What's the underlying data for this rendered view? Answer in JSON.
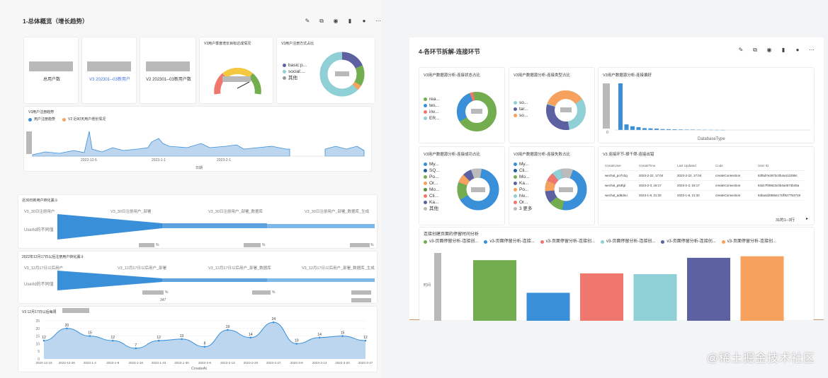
{
  "left": {
    "title": "1-总体概览（增长趋势）",
    "kpis": [
      {
        "label": "总用户数"
      },
      {
        "label": "V3 202301--03新用户"
      },
      {
        "label": "V2 202301--03新用户数"
      }
    ],
    "gauge": {
      "title": "V3用户季度增长目标达成情况"
    },
    "login_pie": {
      "title": "V3用户注册方式占比",
      "legend": [
        "basic:p...",
        "social:...",
        "其他"
      ]
    },
    "trend": {
      "title": "V3用户注册趋势",
      "legend": [
        "用户注册趋势",
        "V2 近90天用户增长情况"
      ],
      "xticks": [
        "2022-12-5",
        "2023-1-1",
        "2023-2-1"
      ],
      "xlabel": "日期"
    },
    "funnel1": {
      "title": "近30日新用户转化漏斗",
      "steps": [
        "V3_30日注册用户",
        "V3_30日注册用户_部署",
        "V3_30日注册用户_部署_数据库",
        "V3_30日注册用户_部署_数据库_生成"
      ],
      "side": "UserId的不同值",
      "pct": "%"
    },
    "funnel2": {
      "title": "2022年12月17日以后注册用户转化漏斗",
      "steps": [
        "V3_12月17日以后用户",
        "V3_12月17日以后用户_部署",
        "V3_12月17日以后用户_部署_数据库",
        "V3_12月17日以后用户_部署_数据库_生成"
      ],
      "side": "UserId的不同值",
      "pct": "%",
      "extra": "347"
    },
    "area": {
      "title": "V3 12月17日以后每周",
      "ylabel": "",
      "xlabel": "CreateAt",
      "yticks": [
        "25",
        "20",
        "15",
        "10",
        "5",
        "0"
      ],
      "xticks": [
        "2022-12-19",
        "2022-12-26",
        "2023-1-2",
        "2023-1-9",
        "2023-1-16",
        "2023-1-23",
        "2023-1-30",
        "2023-2-6",
        "2023-2-13",
        "2023-2-20",
        "2023-2-27",
        "2023-3-6",
        "2023-3-13",
        "2023-3-20",
        "2023-3-27"
      ],
      "values": [
        12,
        20,
        15,
        12,
        7,
        12,
        13,
        8,
        19,
        14,
        24,
        10,
        14,
        15,
        12
      ]
    }
  },
  "right": {
    "title": "4-各环节拆解-连接环节",
    "status_pie": {
      "title": "V3用户数据源分析-连接状态占比",
      "legend": [
        "rea...",
        "tes...",
        "inv...",
        "ER..."
      ]
    },
    "type_pie": {
      "title": "V3用户数据源分析-连接类型占比",
      "legend": [
        "so...",
        "tar...",
        "so..."
      ]
    },
    "pref": {
      "title": "V3用户数据源分析-连接偏好",
      "xlabel": "DatabaseType",
      "yzero": "0"
    },
    "success_pie": {
      "title": "V3用户数据源分析-连接成功占比",
      "legend": [
        "My...",
        "SQ...",
        "Po...",
        "Or...",
        "Mo...",
        "Cli...",
        "Ka...",
        "其他"
      ]
    },
    "fail_pie": {
      "title": "V3用户数据源分析-连接失败占比",
      "legend": [
        "My...",
        "Cli...",
        "Mo...",
        "Ka...",
        "Po...",
        "hiv...",
        "Or...",
        "3 更多"
      ]
    },
    "table": {
      "title": "V3 连接环节-择千筛-连接出错",
      "headers": [
        "CreateUser",
        "CreateTime",
        "Last Updated",
        "Code",
        "User ID"
      ],
      "rows": [
        [
          "wechat_po7n2g",
          "2023-2-22, 17:04",
          "2023-2-22, 17:04",
          "createConnection",
          "63f5d7e2872c0b4a412259c"
        ],
        [
          "wechat_p53fgl",
          "2023-2-3, 18:17",
          "2023-2-3, 18:17",
          "createConnection",
          "63dc7f09823c0b4a4573b45a"
        ],
        [
          "wechat_ad5dnu",
          "2023-1-8, 21:32",
          "2023-1-8, 21:32",
          "createConnection",
          "63ba4d2865e171ff8277b3719"
        ]
      ],
      "pager": "31的1--3行"
    },
    "dwell": {
      "title": "连接创建页面的停留时间分析",
      "legend": [
        "v3-页面停留分析-连接创...",
        "v3-页面停留分析-连接...",
        "v3-页面停留分析-连接创...",
        "v3-页面停留分析-连接创...",
        "v3-页面停留分析-连接创...",
        "v3-页面停留分析-连接创..."
      ],
      "ylabel": "时间"
    }
  },
  "watermark": "@稀土掘金技术社区",
  "colors": {
    "blue": "#3a8fd9",
    "green": "#74ad4f",
    "red": "#f0776d",
    "teal": "#8fcfd6",
    "purple": "#5d61a2",
    "orange": "#f6a25e",
    "grey": "#b9b9b9",
    "yellow": "#f5c842"
  },
  "chart_data": [
    {
      "type": "area",
      "title": "V3 12月17日以后每周",
      "xlabel": "CreateAt",
      "categories": [
        "2022-12-19",
        "2022-12-26",
        "2023-1-2",
        "2023-1-9",
        "2023-1-16",
        "2023-1-23",
        "2023-1-30",
        "2023-2-6",
        "2023-2-13",
        "2023-2-20",
        "2023-2-27",
        "2023-3-6",
        "2023-3-13",
        "2023-3-20",
        "2023-3-27"
      ],
      "values": [
        12,
        20,
        15,
        12,
        7,
        12,
        13,
        8,
        19,
        14,
        24,
        10,
        14,
        15,
        12
      ],
      "ylim": [
        0,
        25
      ]
    },
    {
      "type": "bar",
      "title": "连接创建页面的停留时间分析",
      "series": [
        {
          "name": "v3-页面停留分析-连接创...",
          "values": [
            0.78
          ]
        },
        {
          "name": "v3-页面停留分析-连接...",
          "values": [
            0.36
          ]
        },
        {
          "name": "v3-页面停留分析-连接创...",
          "values": [
            0.61
          ]
        },
        {
          "name": "v3-页面停留分析-连接创...",
          "values": [
            0.6
          ]
        },
        {
          "name": "v3-页面停留分析-连接创...",
          "values": [
            0.81
          ]
        },
        {
          "name": "v3-页面停留分析-连接创...",
          "values": [
            0.83
          ]
        }
      ]
    }
  ]
}
